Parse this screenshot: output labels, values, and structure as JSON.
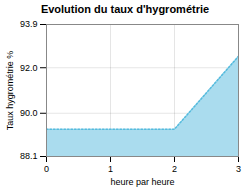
{
  "chart_data": {
    "type": "area",
    "title": "Evolution du taux d'hygrométrie",
    "xlabel": "heure par heure",
    "ylabel": "Taux hygrométrie %",
    "x": [
      0,
      2,
      3
    ],
    "series": [
      {
        "type": "area",
        "color": "#aadcee",
        "values": [
          89.3,
          89.3,
          92.5
        ]
      },
      {
        "type": "line",
        "color": "#55bbdd",
        "line_style": "dotted",
        "values": [
          89.3,
          89.3,
          92.5
        ]
      }
    ],
    "xlim": [
      0,
      3
    ],
    "xticks": [
      0,
      1,
      2,
      3
    ],
    "ylim": [
      88.1,
      93.9
    ],
    "yticks": [
      88.1,
      {
        "value": 90.0,
        "label": "90.0"
      },
      {
        "value": 92.0,
        "label": "92.0"
      },
      93.9
    ],
    "grid": true
  }
}
